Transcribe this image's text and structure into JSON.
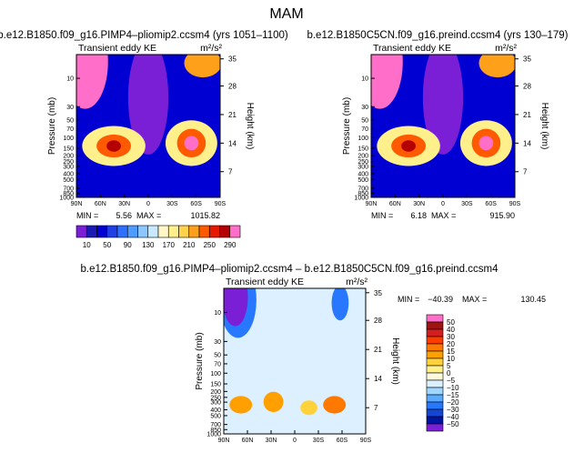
{
  "page": {
    "title": "MAM"
  },
  "chart_data": [
    {
      "type": "heatmap",
      "id": "p1",
      "title": "b.e12.B1850.f09_g16.PIMP4–pliomip2.ccsm4  (yrs 1051–1100)",
      "left_label": "Transient eddy KE",
      "right_label": "m²/s²",
      "ylabel": "Pressure  (mb)",
      "y2label": "Height  (km)",
      "x_ticks": [
        "90N",
        "60N",
        "30N",
        "0",
        "30S",
        "60S",
        "90S"
      ],
      "y_ticks": [
        "10",
        "30",
        "50",
        "70",
        "100",
        "150",
        "200",
        "250",
        "300",
        "400",
        "500",
        "700",
        "850",
        "1000"
      ],
      "y2_ticks": [
        "35",
        "28",
        "21",
        "14",
        "7"
      ],
      "stats": {
        "min_label": "MIN =",
        "min": "5.56",
        "max_label": "MAX =",
        "max": "1015.82"
      },
      "levels": [
        10,
        30,
        50,
        70,
        90,
        110,
        130,
        150,
        170,
        190,
        210,
        230,
        250,
        270,
        290
      ],
      "level_labels": [
        "10",
        "50",
        "90",
        "130",
        "170",
        "210",
        "250",
        "290"
      ],
      "colors": [
        "#7a1fd6",
        "#1a1ab4",
        "#0000d2",
        "#1f3fe6",
        "#2f6fff",
        "#4d9cff",
        "#8cc8ff",
        "#c8e8ff",
        "#fff6c8",
        "#fff08c",
        "#ffd24d",
        "#ffa01a",
        "#ff5a00",
        "#e61a00",
        "#b40000",
        "#ff6ec8"
      ]
    },
    {
      "type": "heatmap",
      "id": "p2",
      "title": "b.e12.B1850C5CN.f09_g16.preind.ccsm4  (yrs 130–179)",
      "left_label": "Transient eddy KE",
      "right_label": "m²/s²",
      "ylabel": "Pressure  (mb)",
      "y2label": "Height  (km)",
      "x_ticks": [
        "90N",
        "60N",
        "30N",
        "0",
        "30S",
        "60S",
        "90S"
      ],
      "y_ticks": [
        "10",
        "30",
        "50",
        "70",
        "100",
        "150",
        "200",
        "250",
        "300",
        "400",
        "500",
        "700",
        "850",
        "1000"
      ],
      "y2_ticks": [
        "35",
        "28",
        "21",
        "14",
        "7"
      ],
      "stats": {
        "min_label": "MIN =",
        "min": "6.18",
        "max_label": "MAX =",
        "max": "915.90"
      }
    },
    {
      "type": "heatmap",
      "id": "p3",
      "title": "b.e12.B1850.f09_g16.PIMP4–pliomip2.ccsm4  –  b.e12.B1850C5CN.f09_g16.preind.ccsm4",
      "left_label": "Transient eddy KE",
      "right_label": "m²/s²",
      "ylabel": "Pressure  (mb)",
      "y2label": "Height  (km)",
      "x_ticks": [
        "90N",
        "60N",
        "30N",
        "0",
        "30S",
        "60S",
        "90S"
      ],
      "y_ticks": [
        "10",
        "30",
        "50",
        "70",
        "100",
        "150",
        "200",
        "250",
        "300",
        "400",
        "500",
        "700",
        "850",
        "1000"
      ],
      "y2_ticks": [
        "35",
        "28",
        "21",
        "14",
        "7"
      ],
      "stats": {
        "min_label": "MIN =",
        "min": "−40.39",
        "max_label": "MAX =",
        "max": "130.45"
      },
      "levels": [
        -50,
        -40,
        -30,
        -20,
        -15,
        -10,
        -5,
        0,
        5,
        10,
        15,
        20,
        30,
        40,
        50
      ],
      "level_labels": [
        "50",
        "40",
        "30",
        "20",
        "15",
        "10",
        "5",
        "0",
        "−5",
        "−10",
        "−15",
        "−20",
        "−30",
        "−40",
        "−50"
      ],
      "colors": [
        "#ff6ec8",
        "#9e1414",
        "#d21e1e",
        "#ff3c00",
        "#ff7800",
        "#ffa000",
        "#ffd23c",
        "#fff08c",
        "#fffadc",
        "#dcf0ff",
        "#a0d7ff",
        "#5aaaff",
        "#2878ff",
        "#1446d2",
        "#0014a0",
        "#7a1fd6"
      ]
    }
  ]
}
